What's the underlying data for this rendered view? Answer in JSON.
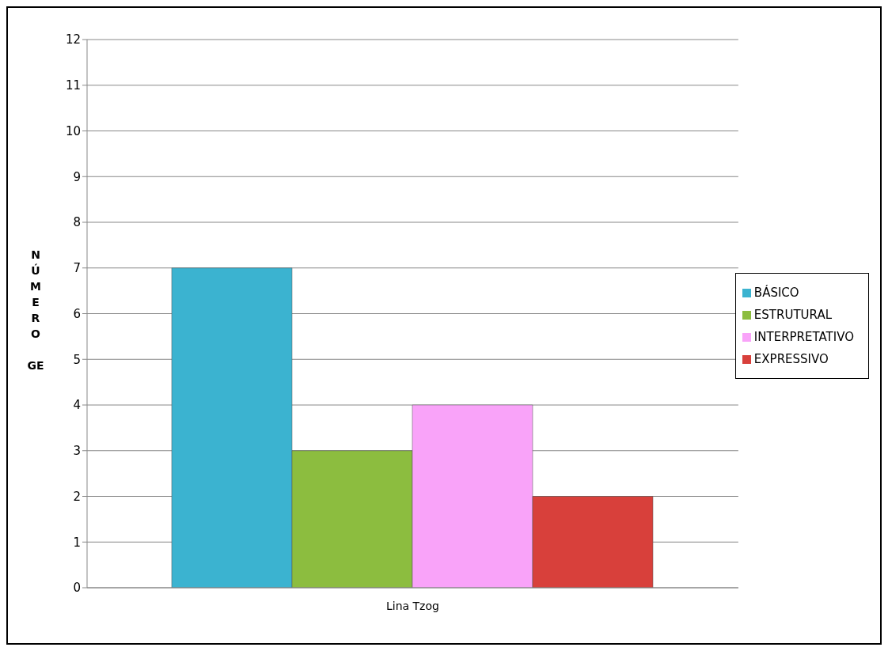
{
  "chart_data": {
    "type": "bar",
    "categories": [
      "Lina Tzog"
    ],
    "ylabel": "NÚMERO GE",
    "series": [
      {
        "name": "BÁSICO",
        "color": "#3bb3d0",
        "values": [
          7
        ]
      },
      {
        "name": "ESTRUTURAL",
        "color": "#8cbd3f",
        "values": [
          3
        ]
      },
      {
        "name": "INTERPRETATIVO",
        "color": "#f9a3f9",
        "values": [
          4
        ]
      },
      {
        "name": "EXPRESSIVO",
        "color": "#d8403b",
        "values": [
          2
        ]
      }
    ],
    "ylim": [
      0,
      12
    ],
    "yticks": [
      0,
      1,
      2,
      3,
      4,
      5,
      6,
      7,
      8,
      9,
      10,
      11,
      12
    ],
    "grid": "y",
    "legend": "right"
  }
}
